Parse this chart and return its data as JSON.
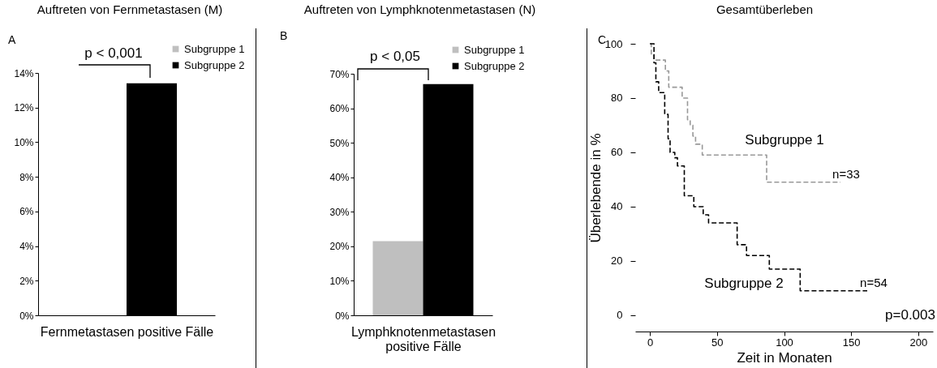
{
  "chart_data": [
    {
      "type": "bar",
      "title": "Auftreten von Fernmetastasen (M)",
      "xlabel": "Fernmetastasen positive Fälle",
      "categories": [
        null
      ],
      "series": [
        {
          "name": "Subgruppe 1",
          "color": "#bfbfbf",
          "values": [
            0
          ]
        },
        {
          "name": "Subgruppe 2",
          "color": "#000000",
          "values": [
            13.4
          ]
        }
      ],
      "ylim": [
        0,
        14
      ],
      "yticks": [
        {
          "value": 0,
          "label": "0%"
        },
        {
          "value": 2,
          "label": "2%"
        },
        {
          "value": 4,
          "label": "4%"
        },
        {
          "value": 6,
          "label": "6%"
        },
        {
          "value": 8,
          "label": "8%"
        },
        {
          "value": 10,
          "label": "10%"
        },
        {
          "value": 12,
          "label": "12%"
        },
        {
          "value": 14,
          "label": "14%"
        }
      ],
      "legend": "top right",
      "annotations": [
        "A",
        "p < 0,001"
      ]
    },
    {
      "type": "bar",
      "title": "Auftreten von Lymphknotenmetastasen (N)",
      "xlabel": "Lymphknotenmetastasen positive Fälle",
      "categories": [
        null
      ],
      "series": [
        {
          "name": "Subgruppe 1",
          "color": "#bfbfbf",
          "values": [
            21.5
          ]
        },
        {
          "name": "Subgruppe 2",
          "color": "#000000",
          "values": [
            67
          ]
        }
      ],
      "ylim": [
        0,
        70
      ],
      "yticks": [
        {
          "value": 0,
          "label": "0%"
        },
        {
          "value": 10,
          "label": "10%"
        },
        {
          "value": 20,
          "label": "20%"
        },
        {
          "value": 30,
          "label": "30%"
        },
        {
          "value": 40,
          "label": "40%"
        },
        {
          "value": 50,
          "label": "50%"
        },
        {
          "value": 60,
          "label": "60%"
        },
        {
          "value": 70,
          "label": "70%"
        }
      ],
      "legend": "top right",
      "annotations": [
        "B",
        "p < 0,05"
      ]
    },
    {
      "type": "step",
      "title": "Gesamtüberleben",
      "xlabel": "Zeit in Monaten",
      "ylabel": "Überlebende in %",
      "series": [
        {
          "color": "#999999",
          "line_style": "dashed",
          "x": [
            0,
            1,
            3,
            11.5,
            14,
            24,
            28,
            30,
            32,
            34,
            39,
            87,
            142
          ],
          "values": [
            100,
            96,
            94,
            90,
            84,
            80,
            72,
            70,
            66,
            63,
            59,
            49,
            49
          ]
        },
        {
          "color": "#000000",
          "line_style": "dashed",
          "x": [
            0,
            3,
            4.4,
            6.5,
            11,
            13.5,
            15,
            18.5,
            20.5,
            25.6,
            32.7,
            39.7,
            43.7,
            65,
            72,
            89,
            106,
            112,
            162
          ],
          "values": [
            100,
            93,
            86,
            82,
            74,
            65,
            60,
            58,
            55,
            44,
            40,
            37,
            34,
            26,
            22,
            17,
            17,
            9,
            9
          ]
        }
      ],
      "xlim": [
        -11,
        211
      ],
      "xticks": [
        0,
        50,
        100,
        150,
        200
      ],
      "ylim": [
        -6,
        100
      ],
      "yticks": [
        0,
        20,
        40,
        60,
        80,
        100
      ],
      "annotations": [
        "C",
        "p=0.003",
        "Subgruppe 1",
        "n=33",
        "Subgruppe 2",
        "n=54"
      ]
    }
  ]
}
